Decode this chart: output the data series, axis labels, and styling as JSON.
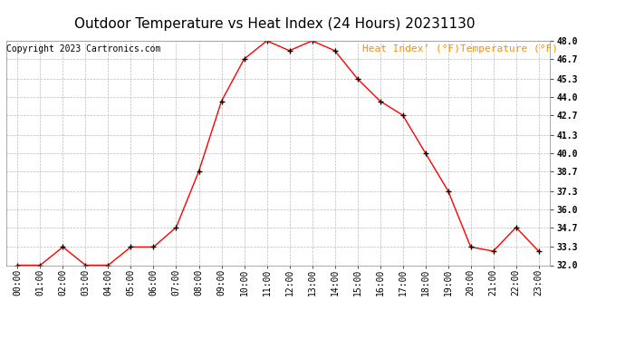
{
  "title": "Outdoor Temperature vs Heat Index (24 Hours) 20231130",
  "copyright": "Copyright 2023 Cartronics.com",
  "legend_text": "Heat Index’ (°F)Temperature (°F)",
  "x_labels": [
    "00:00",
    "01:00",
    "02:00",
    "03:00",
    "04:00",
    "05:00",
    "06:00",
    "07:00",
    "08:00",
    "09:00",
    "10:00",
    "11:00",
    "12:00",
    "13:00",
    "14:00",
    "15:00",
    "16:00",
    "17:00",
    "18:00",
    "19:00",
    "20:00",
    "21:00",
    "22:00",
    "23:00"
  ],
  "temperature": [
    32.0,
    32.0,
    33.3,
    32.0,
    32.0,
    33.3,
    33.3,
    34.7,
    38.7,
    43.7,
    46.7,
    48.0,
    47.3,
    48.0,
    47.3,
    45.3,
    43.7,
    42.7,
    40.0,
    37.3,
    33.3,
    33.0,
    34.7,
    33.0
  ],
  "ylim": [
    32.0,
    48.0
  ],
  "yticks": [
    32.0,
    33.3,
    34.7,
    36.0,
    37.3,
    38.7,
    40.0,
    41.3,
    42.7,
    44.0,
    45.3,
    46.7,
    48.0
  ],
  "line_color": "#ff0000",
  "marker_color": "#000000",
  "bg_color": "#ffffff",
  "grid_color": "#bbbbbb",
  "title_color": "#000000",
  "copyright_color": "#000000",
  "legend_color": "#ff8c00",
  "title_fontsize": 11,
  "copyright_fontsize": 7,
  "legend_fontsize": 8,
  "axis_fontsize": 7
}
